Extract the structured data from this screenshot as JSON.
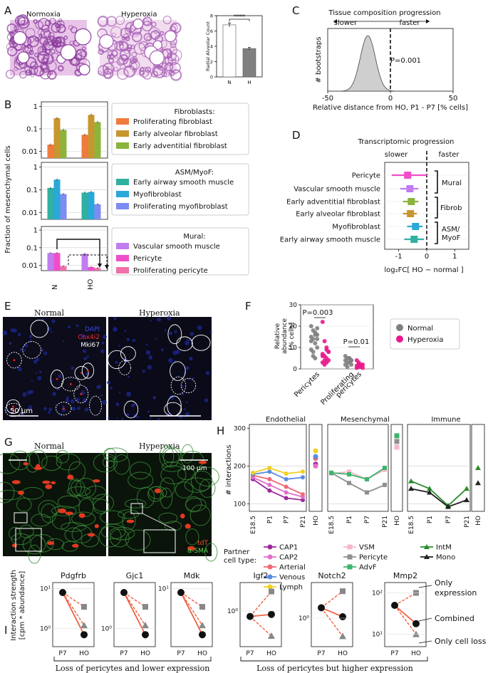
{
  "panelA": {
    "letter": "A",
    "img_labels": [
      "Normoxia",
      "Hyperoxia"
    ],
    "chart_data": {
      "type": "bar",
      "categories": [
        "N",
        "H"
      ],
      "values": [
        6.8,
        3.7
      ],
      "errors": [
        0.25,
        0.15
      ],
      "ylabel": "Radial Alveolar Count",
      "ylim": [
        0,
        8
      ],
      "yticks": [
        0,
        2,
        4,
        6,
        8
      ],
      "significance": "****",
      "colors": [
        "#ffffff",
        "#808080"
      ]
    }
  },
  "panelB": {
    "letter": "B",
    "ylabel": "Fraction of mesenchymal cells",
    "yticks": [
      "1",
      "0.1",
      "0.01"
    ],
    "xcats": [
      "N",
      "HO"
    ],
    "groups": [
      {
        "title": "Fibroblasts:",
        "items": [
          {
            "name": "Proliferating fibroblast",
            "color": "#ef7b3e",
            "values": [
              0.02,
              0.055
            ]
          },
          {
            "name": "Early alveolar fibroblast",
            "color": "#c8962f",
            "values": [
              0.3,
              0.42
            ]
          },
          {
            "name": "Early adventitial fibroblast",
            "color": "#8cb43c",
            "values": [
              0.09,
              0.2
            ]
          }
        ]
      },
      {
        "title": "ASM/MyoF:",
        "items": [
          {
            "name": "Early airway smooth muscle",
            "color": "#2fb0a0",
            "values": [
              0.12,
              0.075
            ]
          },
          {
            "name": "Myofibroblast",
            "color": "#2aa8d8",
            "values": [
              0.28,
              0.08
            ]
          },
          {
            "name": "Proliferating myofibroblast",
            "color": "#7d8cf0",
            "values": [
              0.065,
              0.023
            ]
          }
        ]
      },
      {
        "title": "Mural:",
        "items": [
          {
            "name": "Vascular smooth muscle",
            "color": "#c07cf0",
            "values": [
              0.05,
              0.045
            ]
          },
          {
            "name": "Pericyte",
            "color": "#f04ec8",
            "values": [
              0.05,
              0.008
            ]
          },
          {
            "name": "Proliferating pericyte",
            "color": "#f070a8",
            "values": [
              0.009,
              0.007
            ]
          }
        ]
      }
    ]
  },
  "panelC": {
    "letter": "C",
    "title": "Tissue composition progression",
    "slower": "slower",
    "faster": "faster",
    "pvalue": "P=0.001",
    "ylabel": "# bootstraps",
    "xlabel": "Relative distance from HO, P1 - P7 [% cells]",
    "chart_data": {
      "type": "area",
      "xlim": [
        -50,
        50
      ],
      "xticks": [
        -50,
        0,
        50
      ],
      "peak_x": -18,
      "spread": 6,
      "observed_line_x": 0
    }
  },
  "panelD": {
    "letter": "D",
    "title": "Transcriptomic progression",
    "slower": "slower",
    "faster": "faster",
    "xlabel": "log₂FC[ HO − normal ]",
    "xticks": [
      "-1",
      "0",
      "1"
    ],
    "chart_data": {
      "type": "scatter",
      "xlim": [
        -1.5,
        1.5
      ],
      "rows": [
        {
          "label": "Pericyte",
          "value": -0.68,
          "low": -1.25,
          "high": 0.0,
          "color": "#f04ec8"
        },
        {
          "label": "Vascular smooth muscle",
          "value": -0.6,
          "low": -0.95,
          "high": -0.3,
          "color": "#c07cf0"
        },
        {
          "label": "Early adventitial fibroblast",
          "value": -0.55,
          "low": -0.85,
          "high": -0.3,
          "color": "#8cb43c"
        },
        {
          "label": "Early alveolar fibroblast",
          "value": -0.58,
          "low": -0.85,
          "high": -0.35,
          "color": "#c8962f"
        },
        {
          "label": "Myofibroblast",
          "value": -0.4,
          "low": -0.7,
          "high": -0.15,
          "color": "#2aa8d8"
        },
        {
          "label": "Early airway smooth muscle",
          "value": -0.45,
          "low": -0.8,
          "high": -0.1,
          "color": "#2fb0a0"
        }
      ],
      "brackets": [
        "Mural",
        "Fibrob",
        "ASM/\nMyoF"
      ]
    }
  },
  "panelE": {
    "letter": "E",
    "left": "Normal",
    "right": "Hyperoxia",
    "legend": [
      "DAPI",
      "Cox4i2",
      "Mki67"
    ],
    "scale": "50 μm"
  },
  "panelF": {
    "letter": "F",
    "ylabel": "Relative abundance [% cells]",
    "yticks": [
      0,
      10,
      20,
      30
    ],
    "categories": [
      "Pericytes",
      "Proliferating pericytes"
    ],
    "pvalues": [
      "P=0.003",
      "P=0.01"
    ],
    "legend": [
      {
        "name": "Normal",
        "color": "#808080"
      },
      {
        "name": "Hyperoxia",
        "color": "#e8198c"
      }
    ],
    "chart_data": {
      "type": "scatter",
      "ylim": [
        0,
        30
      ],
      "normal_pericytes": [
        20,
        18,
        17,
        16,
        15,
        14,
        12,
        10,
        9,
        8,
        16,
        14,
        13,
        6,
        5,
        19
      ],
      "hyper_pericytes": [
        22,
        13,
        10,
        8,
        7,
        6,
        5,
        4,
        3,
        2,
        9,
        8,
        6,
        4,
        3
      ],
      "normal_prolif": [
        6,
        5,
        5,
        4,
        4,
        3,
        3,
        2,
        2,
        1,
        5,
        4
      ],
      "hyper_prolif": [
        4,
        3,
        2,
        2,
        1.5,
        1,
        1,
        0.5,
        0.5,
        2,
        1.5
      ]
    }
  },
  "panelG": {
    "letter": "G",
    "left": "Normal",
    "right": "Hyperoxia",
    "scale": "100 μm",
    "legend": [
      "tdT",
      "α-SMA"
    ]
  },
  "panelH": {
    "letter": "H",
    "ylabel": "# interactions",
    "yticks": [
      100,
      200,
      300
    ],
    "xticks": [
      "E18.5",
      "P1",
      "P7",
      "P21"
    ],
    "ho": "HO",
    "partner_label": "Partner\ncell type:",
    "chart_data": {
      "type": "line",
      "x": [
        "E18.5",
        "P1",
        "P7",
        "P21"
      ],
      "ylim": [
        80,
        310
      ],
      "panels": [
        {
          "title": "Endothelial",
          "series": [
            {
              "name": "CAP1",
              "color": "#9c2a9c",
              "values": [
                165,
                135,
                115,
                110
              ],
              "ho": 205
            },
            {
              "name": "CAP2",
              "color": "#e070c8",
              "values": [
                170,
                150,
                130,
                118
              ],
              "ho": 200
            },
            {
              "name": "Arterial",
              "color": "#f06878",
              "values": [
                175,
                165,
                145,
                125
              ],
              "ho": 220
            },
            {
              "name": "Venous",
              "color": "#5a8ce0",
              "values": [
                178,
                185,
                165,
                170
              ],
              "ho": 225
            },
            {
              "name": "Lymph",
              "color": "#f0d020",
              "values": [
                182,
                195,
                180,
                185
              ],
              "ho": 240
            }
          ]
        },
        {
          "title": "Mesenchymal",
          "series": [
            {
              "name": "VSM",
              "color": "#f5b8c8",
              "values": [
                180,
                185,
                165,
                190
              ],
              "ho": 250
            },
            {
              "name": "Pericyte",
              "color": "#909090",
              "values": [
                182,
                155,
                130,
                150
              ],
              "ho": 265
            },
            {
              "name": "AdvF",
              "color": "#3cb46c",
              "values": [
                182,
                178,
                165,
                195
              ],
              "ho": 280
            }
          ]
        },
        {
          "title": "Immune",
          "series": [
            {
              "name": "IntM",
              "color": "#2a8c2a",
              "values": [
                160,
                140,
                95,
                140
              ],
              "ho": 195
            },
            {
              "name": "Mono",
              "color": "#222222",
              "values": [
                140,
                130,
                92,
                110
              ],
              "ho": 155
            }
          ]
        }
      ]
    }
  },
  "panelI": {
    "letter": "I",
    "ylabel": "Interaction strength [cpm * abundance]",
    "xticks": [
      "P7",
      "HO"
    ],
    "caption_left": "Loss of pericytes and lower expression",
    "caption_right": "Loss of pericytes but higher expression",
    "annot": [
      "Only\nexpression",
      "Combined",
      "Only cell loss"
    ],
    "chart_data": {
      "type": "line",
      "panels": [
        {
          "gene": "Pdgfrb",
          "ylabels": [
            "10¹",
            "10⁰"
          ],
          "p7": 8,
          "only_expr": 3.5,
          "combined": 0.7,
          "only_loss": 1.2
        },
        {
          "gene": "Gjc1",
          "ylabels": [
            "10⁰"
          ],
          "p7": 8,
          "only_expr": 3.5,
          "combined": 0.7,
          "only_loss": 1.2
        },
        {
          "gene": "Mdk",
          "ylabels": [
            "10¹"
          ],
          "p7": 8,
          "only_expr": 3.5,
          "combined": 0.7,
          "only_loss": 1.2
        },
        {
          "gene": "Igf2",
          "ylabels": [
            "10⁰"
          ],
          "p7": 0.7,
          "only_expr": 3.5,
          "combined": 0.8,
          "only_loss": 0.2
        },
        {
          "gene": "Notch2",
          "ylabels": [
            "10⁰"
          ],
          "p7": 2,
          "only_expr": 6,
          "combined": 1.1,
          "only_loss": 0.3
        },
        {
          "gene": "Mmp2",
          "ylabels": [
            "10²",
            "10¹"
          ],
          "p7": 50,
          "only_expr": 100,
          "combined": 18,
          "only_loss": 10
        }
      ]
    }
  }
}
